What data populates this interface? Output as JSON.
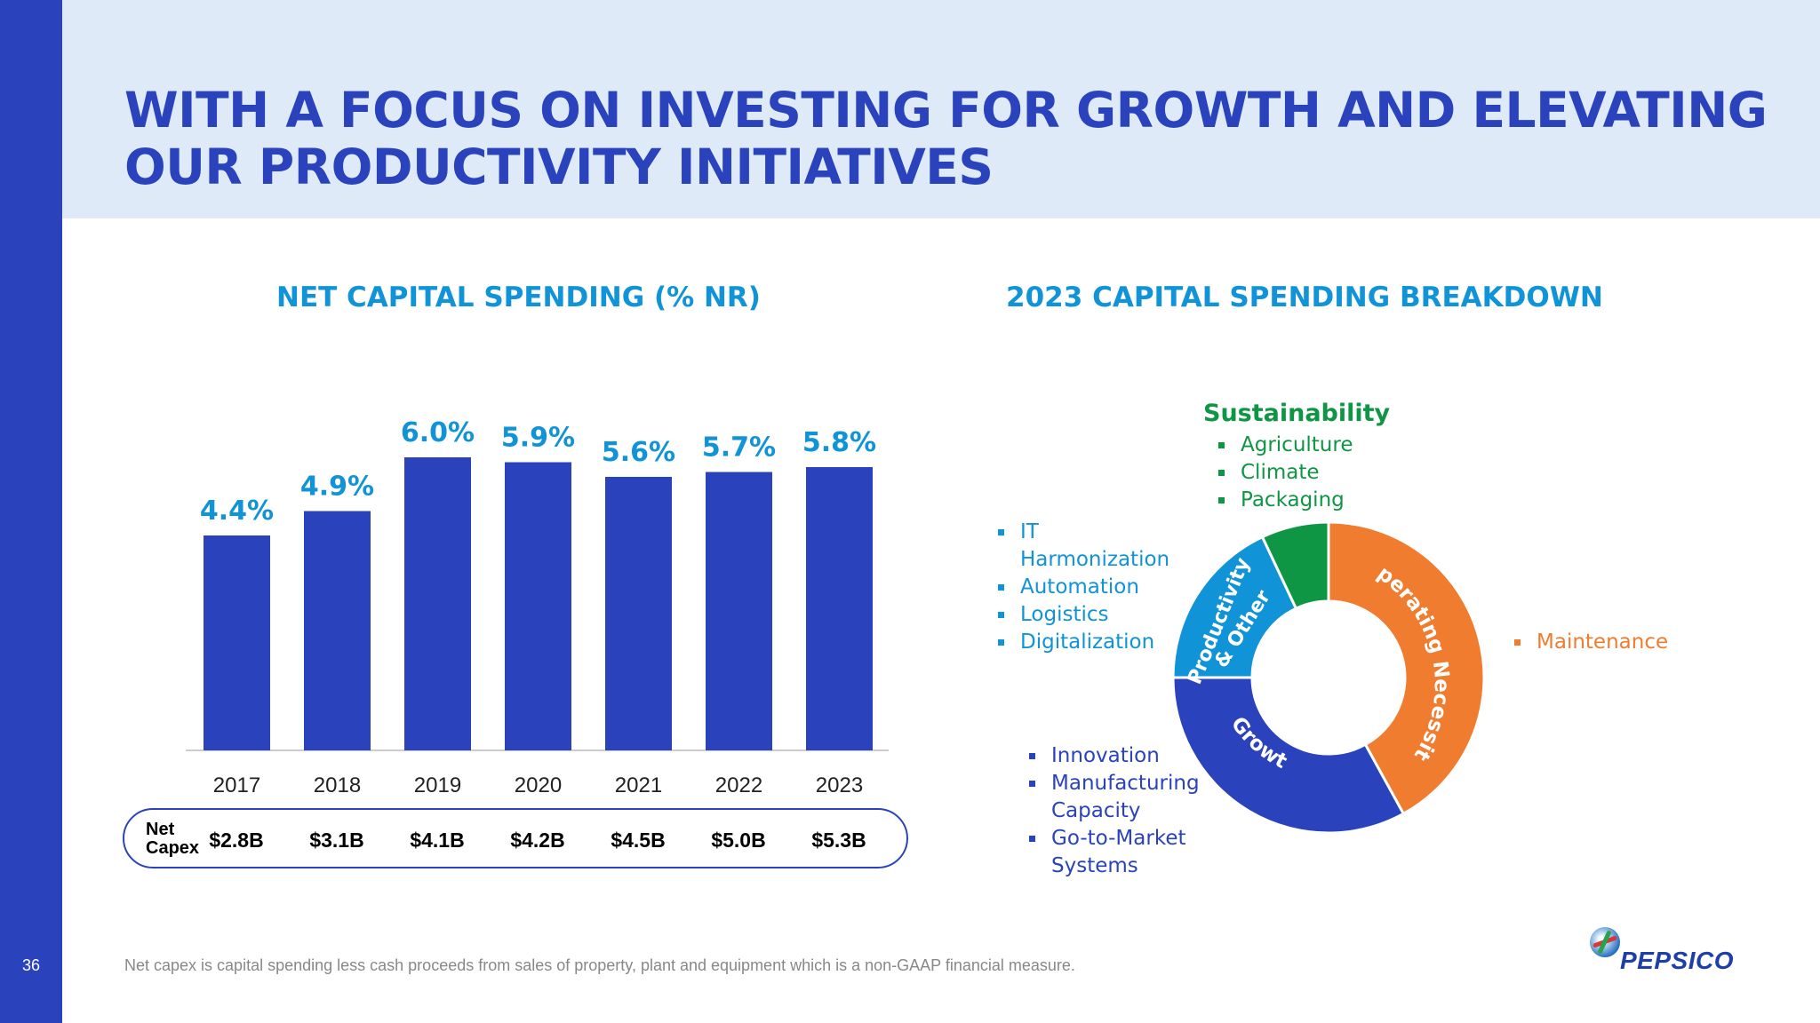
{
  "slide": {
    "title_line1": "WITH A FOCUS ON INVESTING FOR GROWTH AND ELEVATING",
    "title_line2": "OUR PRODUCTIVITY INITIATIVES",
    "page_number": "36",
    "footnote": "Net capex is capital spending less cash proceeds from sales of property, plant and equipment which is a non-GAAP financial measure.",
    "logo_text": "PEPSICO"
  },
  "net_capex": {
    "label_line1": "Net",
    "label_line2": "Capex",
    "values": [
      "$2.8B",
      "$3.1B",
      "$4.1B",
      "$4.2B",
      "$4.5B",
      "$5.0B",
      "$5.3B"
    ]
  },
  "segments": {
    "sustainability_heading": "Sustainability",
    "sustainability_items": [
      "Agriculture",
      "Climate",
      "Packaging"
    ],
    "productivity_items": [
      "IT Harmonization",
      "Automation",
      "Logistics",
      "Digitalization"
    ],
    "growth_items": [
      "Innovation",
      "Manufacturing Capacity",
      "Go-to-Market Systems"
    ],
    "operating_items": [
      "Maintenance"
    ]
  },
  "chart_data": [
    {
      "type": "bar",
      "title": "NET CAPITAL SPENDING (% NR)",
      "categories": [
        "2017",
        "2018",
        "2019",
        "2020",
        "2021",
        "2022",
        "2023"
      ],
      "values": [
        4.4,
        4.9,
        6.0,
        5.9,
        5.6,
        5.7,
        5.8
      ],
      "data_labels": [
        "4.4%",
        "4.9%",
        "6.0%",
        "5.9%",
        "5.6%",
        "5.7%",
        "5.8%"
      ],
      "ylim": [
        0,
        6.0
      ],
      "grid": false,
      "bar_color": "#2a43bd",
      "label_color": "#1093d7"
    },
    {
      "type": "pie",
      "title": "2023 CAPITAL SPENDING BREAKDOWN",
      "donut": true,
      "slices": [
        {
          "label": "Operating Necessity",
          "value": 42,
          "color": "#f07d2f"
        },
        {
          "label": "Growth",
          "value": 33,
          "color": "#2a43bd"
        },
        {
          "label": "Productivity & Other",
          "value": 18,
          "color": "#1093d7"
        },
        {
          "label": "Sustainability",
          "value": 7,
          "color": "#0f9644"
        }
      ]
    }
  ]
}
